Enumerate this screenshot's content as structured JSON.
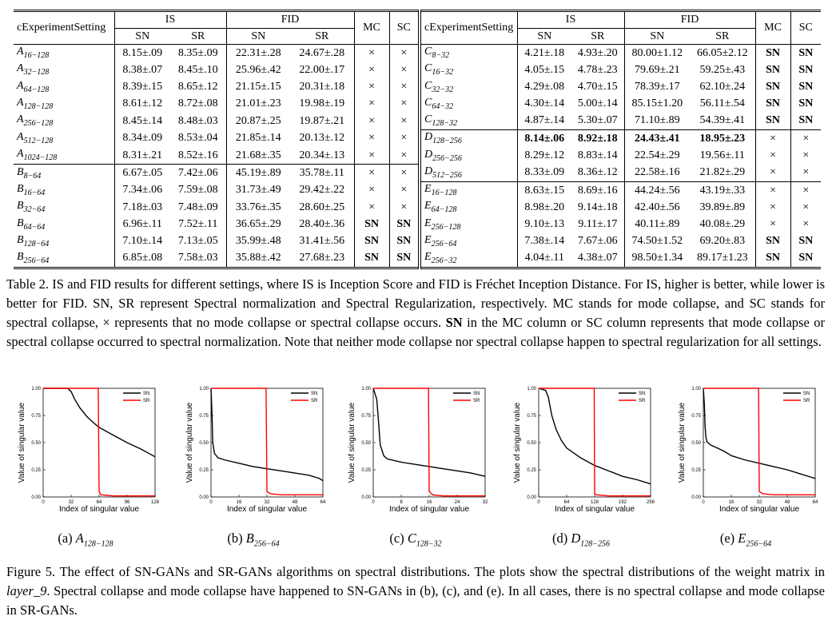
{
  "table": {
    "col_setting": "cExperimentSetting",
    "col_is": "IS",
    "col_fid": "FID",
    "col_mc": "MC",
    "col_sc": "SC",
    "sub_sn": "SN",
    "sub_sr": "SR",
    "left_rows": [
      {
        "letter": "A",
        "sub": "16−128",
        "is_sn": "8.15±.09",
        "is_sr": "8.35±.09",
        "fid_sn": "22.31±.28",
        "fid_sr": "24.67±.28",
        "mc": "×",
        "sc": "×"
      },
      {
        "letter": "A",
        "sub": "32−128",
        "is_sn": "8.38±.07",
        "is_sr": "8.45±.10",
        "fid_sn": "25.96±.42",
        "fid_sr": "22.00±.17",
        "mc": "×",
        "sc": "×"
      },
      {
        "letter": "A",
        "sub": "64−128",
        "is_sn": "8.39±.15",
        "is_sr": "8.65±.12",
        "fid_sn": "21.15±.15",
        "fid_sr": "20.31±.18",
        "mc": "×",
        "sc": "×"
      },
      {
        "letter": "A",
        "sub": "128−128",
        "is_sn": "8.61±.12",
        "is_sr": "8.72±.08",
        "fid_sn": "21.01±.23",
        "fid_sr": "19.98±.19",
        "mc": "×",
        "sc": "×"
      },
      {
        "letter": "A",
        "sub": "256−128",
        "is_sn": "8.45±.14",
        "is_sr": "8.48±.03",
        "fid_sn": "20.87±.25",
        "fid_sr": "19.87±.21",
        "mc": "×",
        "sc": "×"
      },
      {
        "letter": "A",
        "sub": "512−128",
        "is_sn": "8.34±.09",
        "is_sr": "8.53±.04",
        "fid_sn": "21.85±.14",
        "fid_sr": "20.13±.12",
        "mc": "×",
        "sc": "×"
      },
      {
        "letter": "A",
        "sub": "1024−128",
        "is_sn": "8.31±.21",
        "is_sr": "8.52±.16",
        "fid_sn": "21.68±.35",
        "fid_sr": "20.34±.13",
        "mc": "×",
        "sc": "×"
      },
      {
        "letter": "B",
        "sub": "8−64",
        "is_sn": "6.67±.05",
        "is_sr": "7.42±.06",
        "fid_sn": "45.19±.89",
        "fid_sr": "35.78±.11",
        "mc": "×",
        "sc": "×",
        "section": true
      },
      {
        "letter": "B",
        "sub": "16−64",
        "is_sn": "7.34±.06",
        "is_sr": "7.59±.08",
        "fid_sn": "31.73±.49",
        "fid_sr": "29.42±.22",
        "mc": "×",
        "sc": "×"
      },
      {
        "letter": "B",
        "sub": "32−64",
        "is_sn": "7.18±.03",
        "is_sr": "7.48±.09",
        "fid_sn": "33.76±.35",
        "fid_sr": "28.60±.25",
        "mc": "×",
        "sc": "×"
      },
      {
        "letter": "B",
        "sub": "64−64",
        "is_sn": "6.96±.11",
        "is_sr": "7.52±.11",
        "fid_sn": "36.65±.29",
        "fid_sr": "28.40±.36",
        "mc": "SN",
        "sc": "SN"
      },
      {
        "letter": "B",
        "sub": "128−64",
        "is_sn": "7.10±.14",
        "is_sr": "7.13±.05",
        "fid_sn": "35.99±.48",
        "fid_sr": "31.41±.56",
        "mc": "SN",
        "sc": "SN"
      },
      {
        "letter": "B",
        "sub": "256−64",
        "is_sn": "6.85±.08",
        "is_sr": "7.58±.03",
        "fid_sn": "35.88±.42",
        "fid_sr": "27.68±.23",
        "mc": "SN",
        "sc": "SN"
      }
    ],
    "right_rows": [
      {
        "letter": "C",
        "sub": "8−32",
        "is_sn": "4.21±.18",
        "is_sr": "4.93±.20",
        "fid_sn": "80.00±1.12",
        "fid_sr": "66.05±2.12",
        "mc": "SN",
        "sc": "SN"
      },
      {
        "letter": "C",
        "sub": "16−32",
        "is_sn": "4.05±.15",
        "is_sr": "4.78±.23",
        "fid_sn": "79.69±.21",
        "fid_sr": "59.25±.43",
        "mc": "SN",
        "sc": "SN"
      },
      {
        "letter": "C",
        "sub": "32−32",
        "is_sn": "4.29±.08",
        "is_sr": "4.70±.15",
        "fid_sn": "78.39±.17",
        "fid_sr": "62.10±.24",
        "mc": "SN",
        "sc": "SN"
      },
      {
        "letter": "C",
        "sub": "64−32",
        "is_sn": "4.30±.14",
        "is_sr": "5.00±.14",
        "fid_sn": "85.15±1.20",
        "fid_sr": "56.11±.54",
        "mc": "SN",
        "sc": "SN"
      },
      {
        "letter": "C",
        "sub": "128−32",
        "is_sn": "4.87±.14",
        "is_sr": "5.30±.07",
        "fid_sn": "71.10±.89",
        "fid_sr": "54.39±.41",
        "mc": "SN",
        "sc": "SN"
      },
      {
        "letter": "D",
        "sub": "128−256",
        "is_sn": "8.14±.06",
        "is_sr": "8.92±.18",
        "fid_sn": "24.43±.41",
        "fid_sr": "18.95±.23",
        "mc": "×",
        "sc": "×",
        "section": true,
        "bold": true
      },
      {
        "letter": "D",
        "sub": "256−256",
        "is_sn": "8.29±.12",
        "is_sr": "8.83±.14",
        "fid_sn": "22.54±.29",
        "fid_sr": "19.56±.11",
        "mc": "×",
        "sc": "×"
      },
      {
        "letter": "D",
        "sub": "512−256",
        "is_sn": "8.33±.09",
        "is_sr": "8.36±.12",
        "fid_sn": "22.58±.16",
        "fid_sr": "21.82±.29",
        "mc": "×",
        "sc": "×"
      },
      {
        "letter": "E",
        "sub": "16−128",
        "is_sn": "8.63±.15",
        "is_sr": "8.69±.16",
        "fid_sn": "44.24±.56",
        "fid_sr": "43.19±.33",
        "mc": "×",
        "sc": "×",
        "section": true
      },
      {
        "letter": "E",
        "sub": "64−128",
        "is_sn": "8.98±.20",
        "is_sr": "9.14±.18",
        "fid_sn": "42.40±.56",
        "fid_sr": "39.89±.89",
        "mc": "×",
        "sc": "×"
      },
      {
        "letter": "E",
        "sub": "256−128",
        "is_sn": "9.10±.13",
        "is_sr": "9.11±.17",
        "fid_sn": "40.11±.89",
        "fid_sr": "40.08±.29",
        "mc": "×",
        "sc": "×"
      },
      {
        "letter": "E",
        "sub": "256−64",
        "is_sn": "7.38±.14",
        "is_sr": "7.67±.06",
        "fid_sn": "74.50±1.52",
        "fid_sr": "69.20±.83",
        "mc": "SN",
        "sc": "SN"
      },
      {
        "letter": "E",
        "sub": "256−32",
        "is_sn": "4.04±.11",
        "is_sr": "4.38±.07",
        "fid_sn": "98.50±1.34",
        "fid_sr": "89.17±1.23",
        "mc": "SN",
        "sc": "SN"
      }
    ]
  },
  "table_caption": "Table 2. IS and FID results for different settings, where IS is Inception Score and FID is Fréchet Inception Distance. For IS, higher is better, while lower is better for FID. SN, SR represent Spectral normalization and Spectral Regularization, respectively. MC stands for mode collapse, and SC stands for spectral collapse, × represents that no mode collapse or spectral collapse occurs. SN in the MC column or SC column represents that mode collapse or spectral collapse occurred to spectral normalization. Note that neither mode collapse nor spectral collapse happen to spectral regularization for all settings.",
  "figure_caption": "Figure 5. The effect of SN-GANs and SR-GANs algorithms on spectral distributions. The plots show the spectral distributions of the weight matrix in layer_9. Spectral collapse and mode collapse have happened to SN-GANs in (b), (c), and (e). In all cases, there is no spectral collapse and mode collapse in SR-GANs.",
  "chart_data": [
    {
      "type": "line",
      "panel": "(a)",
      "sub_letter": "A",
      "sub_index": "128−128",
      "xlabel": "Index of singular value",
      "ylabel": "Value of singular value",
      "xlim": [
        0,
        128
      ],
      "ylim": [
        0,
        1
      ],
      "xticks": [
        "0",
        "32",
        "64",
        "96",
        "128"
      ],
      "yticks": [
        "0.00",
        "0.25",
        "0.50",
        "0.75",
        "1.00"
      ],
      "series": [
        {
          "name": "SN",
          "color": "#000000",
          "x": [
            0,
            28,
            32,
            36,
            42,
            50,
            58,
            64,
            80,
            96,
            112,
            128
          ],
          "y": [
            1.0,
            1.0,
            0.97,
            0.9,
            0.82,
            0.74,
            0.68,
            0.64,
            0.57,
            0.5,
            0.44,
            0.37
          ]
        },
        {
          "name": "SR",
          "color": "#ff0000",
          "x": [
            0,
            63,
            64,
            66,
            80,
            128
          ],
          "y": [
            1.0,
            1.0,
            0.05,
            0.02,
            0.01,
            0.01
          ]
        }
      ]
    },
    {
      "type": "line",
      "panel": "(b)",
      "sub_letter": "B",
      "sub_index": "256−64",
      "xlabel": "Index of singular value",
      "ylabel": "Value of singular value",
      "xlim": [
        0,
        64
      ],
      "ylim": [
        0,
        1
      ],
      "xticks": [
        "0",
        "16",
        "32",
        "48",
        "64"
      ],
      "yticks": [
        "0.00",
        "0.25",
        "0.50",
        "0.75",
        "1.00"
      ],
      "series": [
        {
          "name": "SN",
          "color": "#000000",
          "x": [
            0,
            0.5,
            1,
            2,
            4,
            8,
            16,
            24,
            32,
            40,
            48,
            56,
            62,
            64
          ],
          "y": [
            1.0,
            0.8,
            0.5,
            0.4,
            0.36,
            0.34,
            0.31,
            0.28,
            0.26,
            0.24,
            0.22,
            0.2,
            0.17,
            0.15
          ]
        },
        {
          "name": "SR",
          "color": "#ff0000",
          "x": [
            0,
            31.5,
            32,
            34,
            40,
            64
          ],
          "y": [
            1.0,
            1.0,
            0.05,
            0.03,
            0.02,
            0.02
          ]
        }
      ]
    },
    {
      "type": "line",
      "panel": "(c)",
      "sub_letter": "C",
      "sub_index": "128−32",
      "xlabel": "Index of singular value",
      "ylabel": "Value of singular value",
      "xlim": [
        0,
        32
      ],
      "ylim": [
        0,
        1
      ],
      "xticks": [
        "0",
        "8",
        "16",
        "24",
        "32"
      ],
      "yticks": [
        "0.00",
        "0.25",
        "0.50",
        "0.75",
        "1.00"
      ],
      "series": [
        {
          "name": "SN",
          "color": "#000000",
          "x": [
            0,
            1,
            1.5,
            2,
            3,
            4,
            8,
            12,
            16,
            20,
            24,
            28,
            32
          ],
          "y": [
            1.0,
            0.9,
            0.7,
            0.48,
            0.38,
            0.35,
            0.32,
            0.3,
            0.28,
            0.26,
            0.24,
            0.22,
            0.19
          ]
        },
        {
          "name": "SR",
          "color": "#ff0000",
          "x": [
            0,
            15.8,
            16,
            17,
            20,
            32
          ],
          "y": [
            1.0,
            1.0,
            0.05,
            0.02,
            0.01,
            0.01
          ]
        }
      ]
    },
    {
      "type": "line",
      "panel": "(d)",
      "sub_letter": "D",
      "sub_index": "128−256",
      "xlabel": "Index of singular value",
      "ylabel": "Value of singular value",
      "xlim": [
        0,
        256
      ],
      "ylim": [
        0,
        1
      ],
      "xticks": [
        "0",
        "64",
        "128",
        "192",
        "256"
      ],
      "yticks": [
        "0.00",
        "0.25",
        "0.50",
        "0.75",
        "1.00"
      ],
      "series": [
        {
          "name": "SN",
          "color": "#000000",
          "x": [
            0,
            16,
            22,
            30,
            40,
            52,
            64,
            96,
            128,
            160,
            192,
            224,
            256
          ],
          "y": [
            1.0,
            0.98,
            0.92,
            0.75,
            0.62,
            0.52,
            0.45,
            0.36,
            0.29,
            0.24,
            0.19,
            0.16,
            0.12
          ]
        },
        {
          "name": "SR",
          "color": "#ff0000",
          "x": [
            0,
            127,
            128,
            132,
            160,
            256
          ],
          "y": [
            1.0,
            1.0,
            0.03,
            0.02,
            0.01,
            0.01
          ]
        }
      ]
    },
    {
      "type": "line",
      "panel": "(e)",
      "sub_letter": "E",
      "sub_index": "256−64",
      "xlabel": "Index of singular value",
      "ylabel": "Value of singular value",
      "xlim": [
        0,
        64
      ],
      "ylim": [
        0,
        1
      ],
      "xticks": [
        "0",
        "16",
        "32",
        "48",
        "64"
      ],
      "yticks": [
        "0.00",
        "0.25",
        "0.50",
        "0.75",
        "1.00"
      ],
      "series": [
        {
          "name": "SN",
          "color": "#000000",
          "x": [
            0,
            0.6,
            1,
            1.5,
            2,
            4,
            8,
            12,
            16,
            24,
            32,
            40,
            48,
            56,
            64
          ],
          "y": [
            1.0,
            0.85,
            0.65,
            0.55,
            0.51,
            0.48,
            0.45,
            0.42,
            0.38,
            0.34,
            0.31,
            0.28,
            0.25,
            0.21,
            0.17
          ]
        },
        {
          "name": "SR",
          "color": "#ff0000",
          "x": [
            0,
            31.6,
            32,
            34,
            40,
            64
          ],
          "y": [
            1.0,
            1.0,
            0.05,
            0.03,
            0.02,
            0.02
          ]
        }
      ]
    }
  ]
}
